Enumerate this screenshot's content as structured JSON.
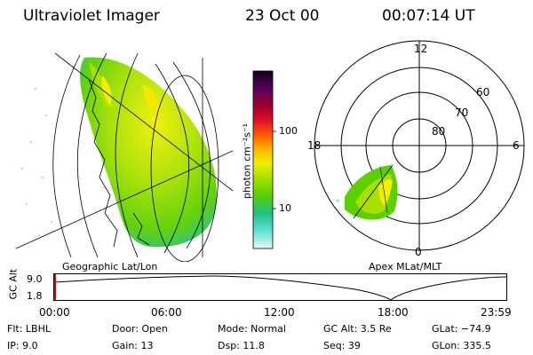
{
  "header": {
    "instrument": "Ultraviolet Imager",
    "date": "23 Oct 00",
    "time": "00:07:14 UT"
  },
  "panels": {
    "geo_label": "Geographic Lat/Lon",
    "apex_label": "Apex MLat/MLT"
  },
  "colorbar": {
    "unit": "photon cm⁻²s⁻¹",
    "ticks": [
      "100",
      "10"
    ],
    "colors": [
      "#1a0033",
      "#5a0060",
      "#a0002a",
      "#e0102a",
      "#ff5a00",
      "#ffb400",
      "#f0f000",
      "#a8e000",
      "#5ad000",
      "#20c080",
      "#60e0d8",
      "#d8f0f0"
    ]
  },
  "polar": {
    "mlt_labels": [
      "12",
      "6",
      "0",
      "18"
    ],
    "mlat_labels": [
      "60",
      "70",
      "80"
    ]
  },
  "timeline": {
    "axis_label": "GC Alt",
    "y_ticks": [
      "9.0",
      "1.8"
    ],
    "x_ticks": [
      "00:00",
      "06:00",
      "12:00",
      "18:00",
      "23:59"
    ]
  },
  "info": {
    "filter": "Flt: LBHL",
    "ip": "IP:  9.0",
    "door": "Door: Open",
    "gain": "Gain: 13",
    "mode": "Mode: Normal",
    "dsp": "Dsp:     11.8",
    "gc_alt": "GC Alt: 3.5 Re",
    "seq": "Seq: 39",
    "glat": "GLat: −74.9",
    "glon": "GLon: 335.5"
  }
}
